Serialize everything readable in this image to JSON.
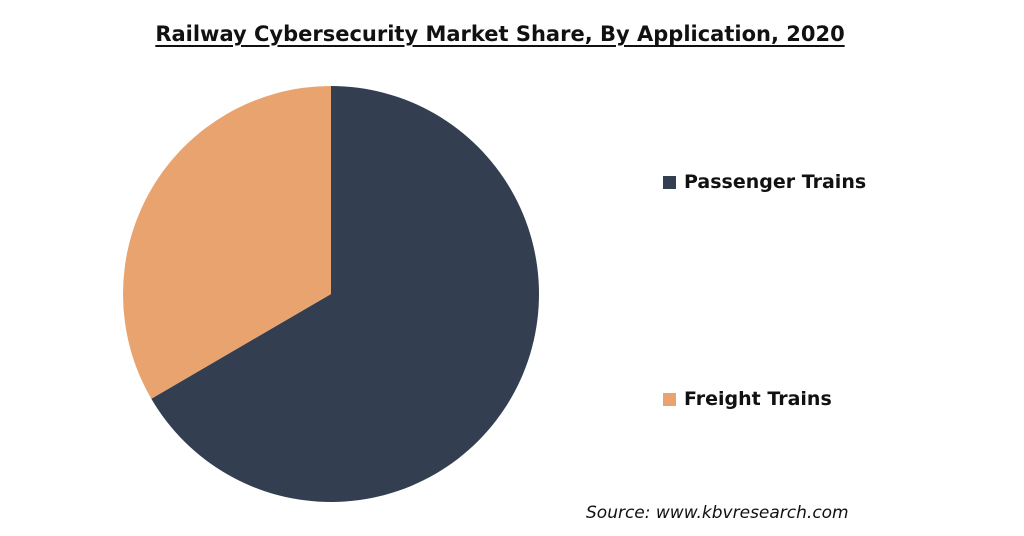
{
  "chart_data": {
    "type": "pie",
    "title": "Railway Cybersecurity Market Share, By Application, 2020",
    "categories": [
      "Passenger Trains",
      "Freight Trains"
    ],
    "values": [
      66.6,
      33.4
    ],
    "colors": [
      "#333F50",
      "#E9A36F"
    ],
    "legend_position": "right"
  },
  "source": "Source: www.kbvresearch.com"
}
